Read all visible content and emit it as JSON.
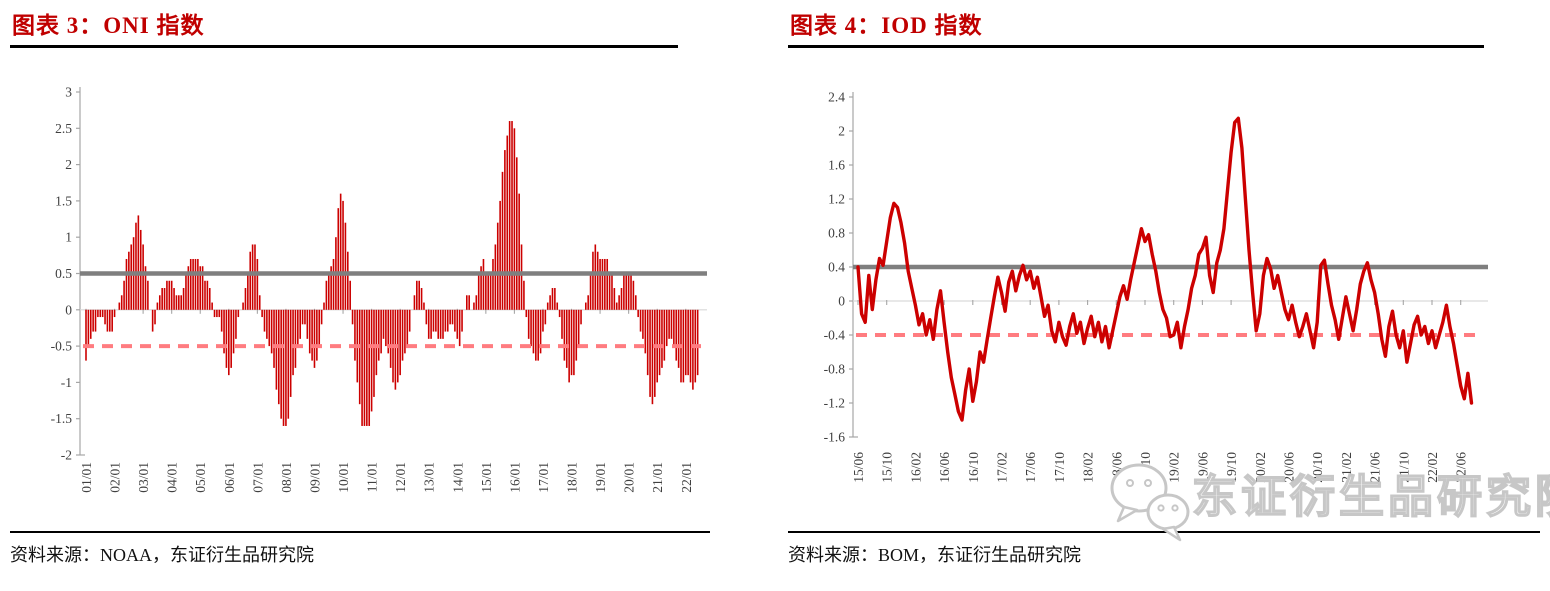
{
  "figures": [
    {
      "title": "图表 3：ONI 指数",
      "source": "资料来源：NOAA，东证衍生品研究院"
    },
    {
      "title": "图表 4：IOD 指数",
      "source": "资料来源：BOM，东证衍生品研究院"
    }
  ],
  "watermark": {
    "text": "东证衍生品研究院",
    "icon": "wechat-icon"
  },
  "colors": {
    "title_red": "#c00000",
    "series_red": "#cc0000",
    "threshold_gray": "#7f7f7f",
    "threshold_pink": "#ff7c80",
    "axis_gray": "#a6a6a6",
    "zero_line_gray": "#d9d9d9",
    "tick_text": "#404040",
    "watermark_gray": "#c7c7c7"
  },
  "chart_data": [
    {
      "type": "bar",
      "title": "图表 3：ONI 指数",
      "series_name": "ONI",
      "frequency": "monthly",
      "start": "2001-01",
      "end": "2022-06",
      "x_tick_labels": [
        "01/01",
        "02/01",
        "03/01",
        "04/01",
        "05/01",
        "06/01",
        "07/01",
        "08/01",
        "09/01",
        "10/01",
        "11/01",
        "12/01",
        "13/01",
        "14/01",
        "15/01",
        "16/01",
        "17/01",
        "18/01",
        "19/01",
        "20/01",
        "21/01",
        "22/01"
      ],
      "yticks": [
        "3",
        "2.5",
        "2",
        "1.5",
        "1",
        "0.5",
        "0",
        "-0.5",
        "-1",
        "-1.5",
        "-2"
      ],
      "ylim": [
        -2,
        3
      ],
      "threshold_solid": 0.5,
      "threshold_dashed": -0.5,
      "bar_color": "#cc0000",
      "threshold_solid_color": "#7f7f7f",
      "threshold_dashed_color": "#ff7c80",
      "grid": false,
      "legend": "none",
      "values": [
        -0.7,
        -0.5,
        -0.4,
        -0.3,
        -0.3,
        -0.1,
        -0.1,
        -0.1,
        -0.2,
        -0.3,
        -0.3,
        -0.3,
        -0.1,
        0.0,
        0.1,
        0.2,
        0.4,
        0.7,
        0.8,
        0.9,
        1.0,
        1.2,
        1.3,
        1.1,
        0.9,
        0.6,
        0.4,
        0.0,
        -0.3,
        -0.2,
        0.1,
        0.2,
        0.3,
        0.3,
        0.4,
        0.4,
        0.4,
        0.3,
        0.2,
        0.2,
        0.2,
        0.3,
        0.5,
        0.6,
        0.7,
        0.7,
        0.7,
        0.7,
        0.6,
        0.6,
        0.4,
        0.4,
        0.3,
        0.1,
        -0.1,
        -0.1,
        -0.1,
        -0.3,
        -0.6,
        -0.8,
        -0.9,
        -0.8,
        -0.6,
        -0.4,
        -0.1,
        0.0,
        0.1,
        0.3,
        0.5,
        0.8,
        0.9,
        0.9,
        0.7,
        0.2,
        -0.1,
        -0.3,
        -0.4,
        -0.5,
        -0.6,
        -0.8,
        -1.1,
        -1.3,
        -1.5,
        -1.6,
        -1.6,
        -1.5,
        -1.2,
        -0.9,
        -0.8,
        -0.5,
        -0.4,
        -0.2,
        -0.2,
        -0.4,
        -0.6,
        -0.7,
        -0.8,
        -0.7,
        -0.5,
        -0.2,
        0.1,
        0.4,
        0.5,
        0.6,
        0.7,
        1.0,
        1.4,
        1.6,
        1.5,
        1.2,
        0.8,
        0.4,
        -0.2,
        -0.7,
        -1.0,
        -1.3,
        -1.6,
        -1.6,
        -1.6,
        -1.6,
        -1.4,
        -1.2,
        -0.9,
        -0.7,
        -0.6,
        -0.4,
        -0.5,
        -0.6,
        -0.8,
        -1.0,
        -1.1,
        -1.0,
        -0.9,
        -0.7,
        -0.6,
        -0.5,
        -0.3,
        0.0,
        0.2,
        0.4,
        0.4,
        0.3,
        0.1,
        -0.2,
        -0.4,
        -0.4,
        -0.3,
        -0.3,
        -0.4,
        -0.4,
        -0.4,
        -0.3,
        -0.3,
        -0.2,
        -0.2,
        -0.3,
        -0.4,
        -0.5,
        -0.3,
        0.0,
        0.2,
        0.2,
        0.0,
        0.1,
        0.2,
        0.5,
        0.6,
        0.7,
        0.5,
        0.5,
        0.5,
        0.7,
        0.9,
        1.2,
        1.5,
        1.9,
        2.2,
        2.4,
        2.6,
        2.6,
        2.5,
        2.1,
        1.6,
        0.9,
        0.4,
        -0.1,
        -0.4,
        -0.5,
        -0.6,
        -0.7,
        -0.7,
        -0.6,
        -0.3,
        -0.2,
        0.1,
        0.2,
        0.3,
        0.3,
        0.1,
        -0.1,
        -0.4,
        -0.7,
        -0.8,
        -1.0,
        -0.9,
        -0.9,
        -0.7,
        -0.5,
        -0.2,
        0.0,
        0.1,
        0.2,
        0.5,
        0.8,
        0.9,
        0.8,
        0.7,
        0.7,
        0.7,
        0.7,
        0.5,
        0.5,
        0.3,
        0.1,
        0.2,
        0.3,
        0.5,
        0.5,
        0.5,
        0.5,
        0.4,
        0.2,
        -0.1,
        -0.3,
        -0.4,
        -0.6,
        -0.9,
        -1.2,
        -1.3,
        -1.2,
        -1.0,
        -0.9,
        -0.8,
        -0.7,
        -0.5,
        -0.4,
        -0.4,
        -0.5,
        -0.7,
        -0.8,
        -1.0,
        -1.0,
        -0.9,
        -0.9,
        -1.0,
        -1.1,
        -1.0,
        -0.9
      ]
    },
    {
      "type": "line",
      "title": "图表 4：IOD 指数",
      "series_name": "IOD",
      "frequency": "semimonthly",
      "start": "2015-06",
      "end": "2022-07",
      "x_tick_labels": [
        "15/06",
        "15/10",
        "16/02",
        "16/06",
        "16/10",
        "17/02",
        "17/06",
        "17/10",
        "18/02",
        "18/06",
        "18/10",
        "19/02",
        "19/06",
        "19/10",
        "20/02",
        "20/06",
        "20/10",
        "21/02",
        "21/06",
        "21/10",
        "22/02",
        "22/06"
      ],
      "yticks": [
        "2.4",
        "2",
        "1.6",
        "1.2",
        "0.8",
        "0.4",
        "0",
        "-0.4",
        "-0.8",
        "-1.2",
        "-1.6"
      ],
      "ylim": [
        -1.6,
        2.4
      ],
      "threshold_solid": 0.4,
      "threshold_dashed": -0.4,
      "line_color": "#cc0000",
      "threshold_solid_color": "#7f7f7f",
      "threshold_dashed_color": "#ff7c80",
      "grid": false,
      "legend": "none",
      "values": [
        0.4,
        -0.15,
        -0.25,
        0.3,
        -0.1,
        0.25,
        0.5,
        0.42,
        0.7,
        0.98,
        1.15,
        1.1,
        0.92,
        0.68,
        0.35,
        0.15,
        -0.05,
        -0.28,
        -0.15,
        -0.4,
        -0.22,
        -0.45,
        -0.1,
        0.12,
        -0.25,
        -0.6,
        -0.9,
        -1.1,
        -1.3,
        -1.4,
        -1.05,
        -0.8,
        -1.18,
        -0.95,
        -0.6,
        -0.72,
        -0.45,
        -0.2,
        0.05,
        0.28,
        0.1,
        -0.12,
        0.22,
        0.35,
        0.12,
        0.3,
        0.42,
        0.25,
        0.35,
        0.15,
        0.28,
        0.05,
        -0.18,
        -0.05,
        -0.35,
        -0.48,
        -0.25,
        -0.42,
        -0.52,
        -0.3,
        -0.15,
        -0.38,
        -0.25,
        -0.5,
        -0.32,
        -0.18,
        -0.42,
        -0.25,
        -0.48,
        -0.3,
        -0.55,
        -0.35,
        -0.15,
        0.05,
        0.18,
        0.02,
        0.25,
        0.45,
        0.65,
        0.85,
        0.7,
        0.78,
        0.55,
        0.35,
        0.1,
        -0.1,
        -0.2,
        -0.42,
        -0.4,
        -0.25,
        -0.55,
        -0.3,
        -0.1,
        0.15,
        0.3,
        0.55,
        0.62,
        0.75,
        0.3,
        0.1,
        0.45,
        0.6,
        0.85,
        1.3,
        1.75,
        2.1,
        2.15,
        1.8,
        1.2,
        0.6,
        0.1,
        -0.35,
        -0.15,
        0.3,
        0.5,
        0.38,
        0.15,
        0.3,
        0.1,
        -0.1,
        -0.22,
        -0.05,
        -0.25,
        -0.42,
        -0.3,
        -0.15,
        -0.35,
        -0.55,
        -0.25,
        0.42,
        0.48,
        0.2,
        -0.05,
        -0.22,
        -0.45,
        -0.2,
        0.05,
        -0.15,
        -0.35,
        -0.1,
        0.2,
        0.35,
        0.45,
        0.25,
        0.1,
        -0.15,
        -0.45,
        -0.65,
        -0.3,
        -0.12,
        -0.4,
        -0.55,
        -0.35,
        -0.72,
        -0.5,
        -0.28,
        -0.18,
        -0.4,
        -0.3,
        -0.5,
        -0.35,
        -0.55,
        -0.4,
        -0.25,
        -0.05,
        -0.3,
        -0.5,
        -0.75,
        -1.0,
        -1.15,
        -0.85,
        -1.2
      ]
    }
  ]
}
